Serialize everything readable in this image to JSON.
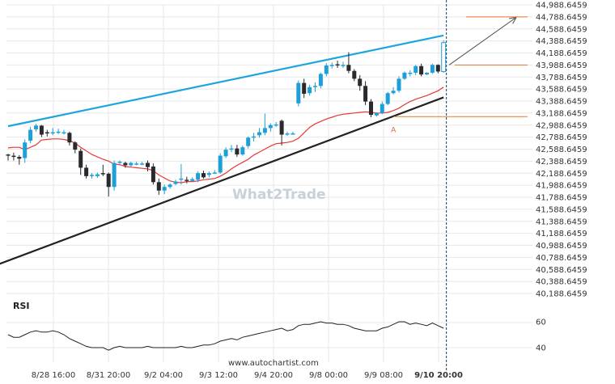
{
  "chart_data": {
    "type": "candlestick",
    "colors": {
      "up": "#1e9fd8",
      "down": "#2a2a2e",
      "ma": "#e53935",
      "resistance": "#1ea5dc",
      "support": "#222222",
      "levels": "#e8772e",
      "projection": "#555555",
      "rsi": "#222222",
      "grid": "#e8e8e8",
      "cursor": "#1b3a5a"
    },
    "y_axis": {
      "min": 40188.6459,
      "max": 44988.6459,
      "step": 200,
      "ticks": [
        "44,988.6459",
        "44,788.6459",
        "44,588.6459",
        "44,388.6459",
        "44,188.6459",
        "43,988.6459",
        "43,788.6459",
        "43,588.6459",
        "43,388.6459",
        "43,188.6459",
        "42,988.6459",
        "42,788.6459",
        "42,588.6459",
        "42,388.6459",
        "42,188.6459",
        "41,988.6459",
        "41,788.6459",
        "41,588.6459",
        "41,388.6459",
        "41,188.6459",
        "40,988.6459",
        "40,788.6459",
        "40,588.6459",
        "40,388.6459",
        "40,188.6459"
      ]
    },
    "x_labels": [
      "8/28 16:00",
      "8/31 20:00",
      "9/2 04:00",
      "9/3 12:00",
      "9/4 20:00",
      "9/8 00:00",
      "9/9 08:00",
      "9/10 20:00"
    ],
    "x_label_bold_index": 7,
    "candles": [
      [
        42500,
        42510,
        42400,
        42480
      ],
      [
        42480,
        42530,
        42400,
        42470
      ],
      [
        42460,
        42490,
        42330,
        42430
      ],
      [
        42440,
        42750,
        42360,
        42700
      ],
      [
        42730,
        42960,
        42690,
        42910
      ],
      [
        42920,
        43010,
        42880,
        42980
      ],
      [
        42980,
        42990,
        42790,
        42830
      ],
      [
        42870,
        42910,
        42800,
        42860
      ],
      [
        42860,
        42940,
        42820,
        42870
      ],
      [
        42880,
        42930,
        42840,
        42880
      ],
      [
        42850,
        42910,
        42830,
        42870
      ],
      [
        42860,
        42880,
        42650,
        42700
      ],
      [
        42700,
        42720,
        42520,
        42580
      ],
      [
        42560,
        42600,
        42160,
        42280
      ],
      [
        42280,
        42330,
        42100,
        42140
      ],
      [
        42140,
        42190,
        42100,
        42160
      ],
      [
        42140,
        42200,
        42110,
        42170
      ],
      [
        42190,
        42330,
        42140,
        42180
      ],
      [
        42180,
        42200,
        41800,
        41960
      ],
      [
        41960,
        42400,
        41900,
        42360
      ],
      [
        42360,
        42400,
        42320,
        42380
      ],
      [
        42360,
        42380,
        42280,
        42320
      ],
      [
        42320,
        42380,
        42300,
        42360
      ],
      [
        42340,
        42380,
        42320,
        42350
      ],
      [
        42350,
        42380,
        42320,
        42350
      ],
      [
        42360,
        42400,
        42220,
        42290
      ],
      [
        42300,
        42350,
        42000,
        42040
      ],
      [
        42040,
        42100,
        41830,
        41900
      ],
      [
        41900,
        42000,
        41840,
        41960
      ],
      [
        41960,
        42020,
        41930,
        42000
      ],
      [
        42010,
        42080,
        41990,
        42050
      ],
      [
        42080,
        42340,
        42000,
        42100
      ],
      [
        42080,
        42130,
        42020,
        42060
      ],
      [
        42060,
        42120,
        42050,
        42090
      ],
      [
        42080,
        42220,
        42040,
        42190
      ],
      [
        42190,
        42230,
        42100,
        42120
      ],
      [
        42160,
        42220,
        42120,
        42190
      ],
      [
        42190,
        42240,
        42180,
        42200
      ],
      [
        42200,
        42520,
        42180,
        42480
      ],
      [
        42470,
        42620,
        42440,
        42580
      ],
      [
        42580,
        42660,
        42540,
        42600
      ],
      [
        42600,
        42660,
        42460,
        42500
      ],
      [
        42500,
        42650,
        42480,
        42620
      ],
      [
        42640,
        42800,
        42600,
        42780
      ],
      [
        42780,
        42860,
        42720,
        42800
      ],
      [
        42820,
        42940,
        42780,
        42870
      ],
      [
        42860,
        43180,
        42820,
        42940
      ],
      [
        42940,
        43020,
        42880,
        42990
      ],
      [
        42990,
        43040,
        42960,
        43000
      ],
      [
        43060,
        43080,
        42650,
        42830
      ],
      [
        42830,
        42880,
        42810,
        42850
      ],
      [
        42840,
        42880,
        42830,
        42850
      ],
      [
        43350,
        43730,
        43300,
        43690
      ],
      [
        43690,
        43760,
        43440,
        43510
      ],
      [
        43520,
        43660,
        43480,
        43620
      ],
      [
        43620,
        43700,
        43540,
        43640
      ],
      [
        43640,
        43860,
        43600,
        43840
      ],
      [
        43840,
        44020,
        43800,
        43980
      ],
      [
        43980,
        44030,
        43930,
        43990
      ],
      [
        44000,
        44060,
        43940,
        43980
      ],
      [
        43980,
        44040,
        43940,
        43990
      ],
      [
        43990,
        44200,
        43850,
        43890
      ],
      [
        43890,
        43920,
        43720,
        43760
      ],
      [
        43760,
        43820,
        43560,
        43640
      ],
      [
        43640,
        43720,
        43320,
        43380
      ],
      [
        43380,
        43420,
        43120,
        43160
      ],
      [
        43150,
        43200,
        43130,
        43190
      ],
      [
        43190,
        43380,
        43170,
        43340
      ],
      [
        43340,
        43540,
        43320,
        43520
      ],
      [
        43520,
        43620,
        43500,
        43560
      ],
      [
        43560,
        43800,
        43530,
        43760
      ],
      [
        43760,
        43880,
        43740,
        43860
      ],
      [
        43860,
        43900,
        43800,
        43860
      ],
      [
        43860,
        43990,
        43820,
        43970
      ],
      [
        43970,
        44010,
        43800,
        43830
      ],
      [
        43830,
        43870,
        43820,
        43860
      ],
      [
        43860,
        44010,
        43840,
        43990
      ],
      [
        43990,
        44000,
        43850,
        43880
      ],
      [
        43880,
        44400,
        43860,
        44360
      ]
    ],
    "ma": [
      42610,
      42620,
      42620,
      42580,
      42620,
      42660,
      42740,
      42750,
      42760,
      42760,
      42750,
      42730,
      42690,
      42620,
      42560,
      42500,
      42460,
      42420,
      42390,
      42340,
      42330,
      42300,
      42290,
      42280,
      42270,
      42260,
      42230,
      42160,
      42110,
      42060,
      42040,
      42030,
      42050,
      42050,
      42060,
      42080,
      42090,
      42100,
      42140,
      42190,
      42260,
      42320,
      42370,
      42420,
      42490,
      42540,
      42590,
      42640,
      42680,
      42690,
      42700,
      42720,
      42770,
      42860,
      42950,
      43010,
      43050,
      43090,
      43120,
      43150,
      43170,
      43180,
      43190,
      43200,
      43210,
      43200,
      43190,
      43190,
      43200,
      43230,
      43270,
      43330,
      43380,
      43420,
      43450,
      43480,
      43520,
      43560,
      43620
    ],
    "resistance": {
      "start": [
        0,
        42970
      ],
      "end": [
        78,
        44480
      ]
    },
    "support": {
      "start": [
        -5,
        40560
      ],
      "end": [
        78,
        43450
      ]
    },
    "levels": [
      {
        "value": 44788.6459,
        "from": 82
      },
      {
        "value": 43988.6459,
        "from": 80
      },
      {
        "value": 43130,
        "from": 69
      }
    ],
    "projection": {
      "start": [
        79,
        43990
      ],
      "end": [
        91,
        44780
      ]
    },
    "point_label": {
      "text": "A",
      "index": 69,
      "value": 43030
    },
    "cursor_index": 78.5,
    "rsi": {
      "title": "RSI",
      "ticks": [
        "60",
        "40"
      ],
      "range": [
        30,
        70
      ],
      "values": [
        50,
        48,
        48,
        50,
        52,
        53,
        52,
        52,
        53,
        52,
        50,
        47,
        45,
        43,
        41,
        40,
        40,
        40,
        38,
        40,
        41,
        40,
        40,
        40,
        40,
        41,
        40,
        40,
        40,
        40,
        40,
        41,
        40,
        40,
        41,
        42,
        42,
        43,
        45,
        46,
        47,
        46,
        48,
        49,
        50,
        51,
        52,
        53,
        54,
        55,
        53,
        54,
        57,
        58,
        58,
        59,
        60,
        59,
        59,
        58,
        58,
        57,
        55,
        54,
        53,
        53,
        53,
        55,
        56,
        58,
        60,
        60,
        58,
        59,
        58,
        57,
        59,
        57,
        55
      ]
    },
    "watermark": "What2Trade",
    "source": "www.autochartist.com"
  }
}
